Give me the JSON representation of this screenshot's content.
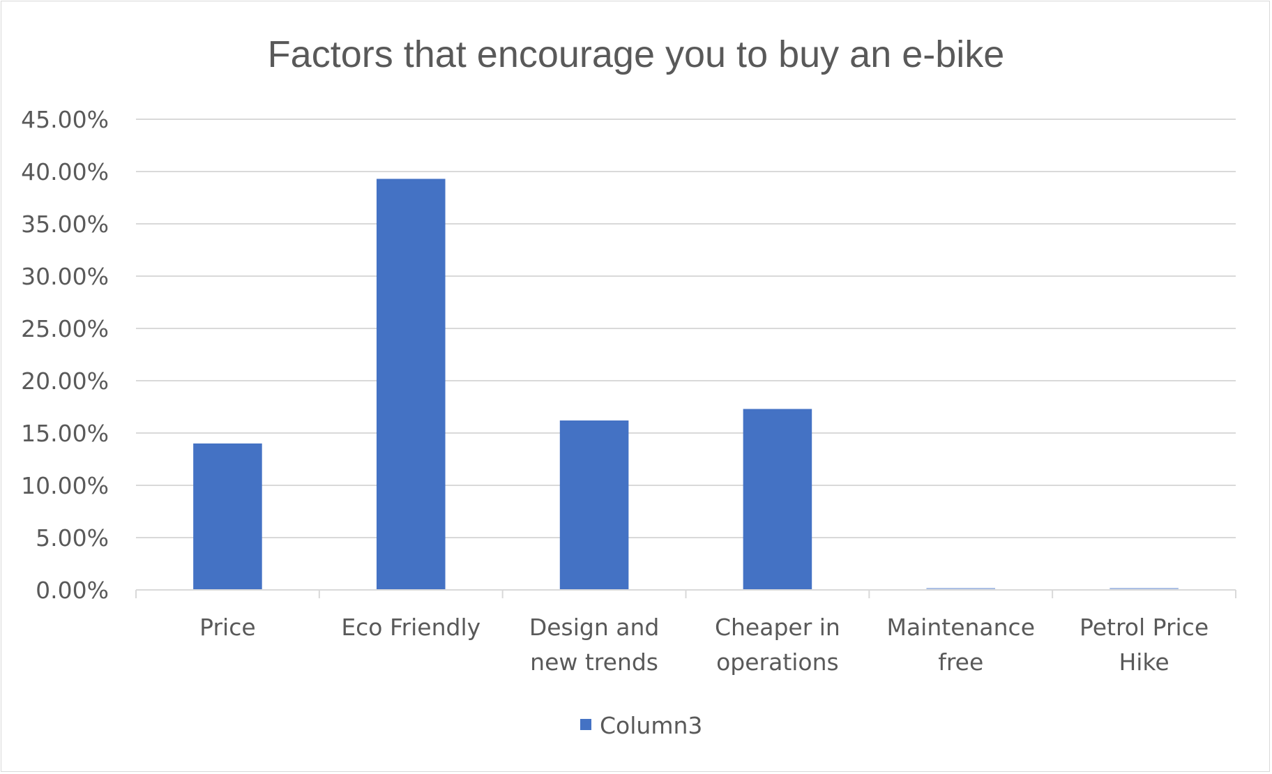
{
  "chart_data": {
    "type": "bar",
    "title": "Factors  that encourage you to buy an e-bike",
    "categories": [
      [
        "Price"
      ],
      [
        "Eco Friendly"
      ],
      [
        "Design and",
        "new trends"
      ],
      [
        "Cheaper in",
        "operations"
      ],
      [
        "Maintenance",
        "free"
      ],
      [
        "Petrol Price",
        "Hike"
      ]
    ],
    "series": [
      {
        "name": "Column3",
        "values": [
          0.14,
          0.393,
          0.162,
          0.173,
          0.002,
          0.002
        ]
      }
    ],
    "yticks": [
      "0.00%",
      "5.00%",
      "10.00%",
      "15.00%",
      "20.00%",
      "25.00%",
      "30.00%",
      "35.00%",
      "40.00%",
      "45.00%"
    ],
    "ylim": [
      0,
      0.45
    ],
    "grid": true,
    "legend_position": "bottom",
    "colors": {
      "bar": "#4472C4",
      "grid": "#d9d9d9",
      "text": "#595959"
    }
  }
}
